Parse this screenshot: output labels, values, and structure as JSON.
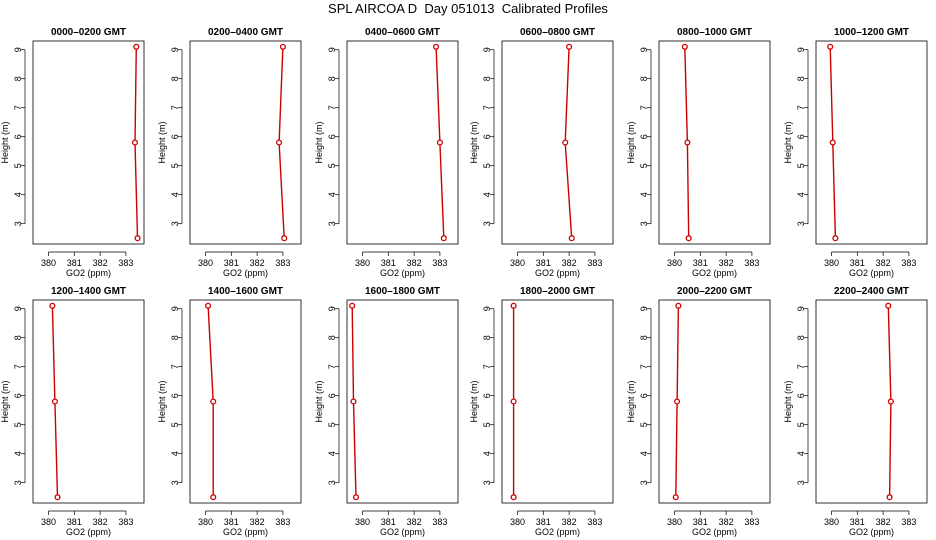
{
  "title": "SPL AIRCOA D  Day 051013  Calibrated Profiles",
  "colors": {
    "profile": "#cc0000",
    "axis": "#000000"
  },
  "chart_data": [
    {
      "type": "line",
      "title": "0000–0200 GMT",
      "xlabel": "GO2 (ppm)",
      "ylabel": "Height (m)",
      "xlim": [
        379.4,
        383.7
      ],
      "ylim": [
        2.3,
        9.3
      ],
      "xticks": [
        380,
        381,
        382,
        383
      ],
      "yticks": [
        3,
        4,
        5,
        6,
        7,
        8,
        9
      ],
      "x": [
        383.4,
        383.35,
        383.45
      ],
      "y": [
        9.1,
        5.8,
        2.5
      ]
    },
    {
      "type": "line",
      "title": "0200–0400 GMT",
      "xlabel": "GO2 (ppm)",
      "ylabel": "Height (m)",
      "xlim": [
        379.4,
        383.7
      ],
      "ylim": [
        2.3,
        9.3
      ],
      "xticks": [
        380,
        381,
        382,
        383
      ],
      "yticks": [
        3,
        4,
        5,
        6,
        7,
        8,
        9
      ],
      "x": [
        383.0,
        382.85,
        383.05
      ],
      "y": [
        9.1,
        5.8,
        2.5
      ]
    },
    {
      "type": "line",
      "title": "0400–0600 GMT",
      "xlabel": "GO2 (ppm)",
      "ylabel": "Height (m)",
      "xlim": [
        379.4,
        383.7
      ],
      "ylim": [
        2.3,
        9.3
      ],
      "xticks": [
        380,
        381,
        382,
        383
      ],
      "yticks": [
        3,
        4,
        5,
        6,
        7,
        8,
        9
      ],
      "x": [
        382.85,
        383.0,
        383.15
      ],
      "y": [
        9.1,
        5.8,
        2.5
      ]
    },
    {
      "type": "line",
      "title": "0600–0800 GMT",
      "xlabel": "GO2 (ppm)",
      "ylabel": "Height (m)",
      "xlim": [
        379.4,
        383.7
      ],
      "ylim": [
        2.3,
        9.3
      ],
      "xticks": [
        380,
        381,
        382,
        383
      ],
      "yticks": [
        3,
        4,
        5,
        6,
        7,
        8,
        9
      ],
      "x": [
        382.0,
        381.85,
        382.1
      ],
      "y": [
        9.1,
        5.8,
        2.5
      ]
    },
    {
      "type": "line",
      "title": "0800–1000 GMT",
      "xlabel": "GO2 (ppm)",
      "ylabel": "Height (m)",
      "xlim": [
        379.4,
        383.7
      ],
      "ylim": [
        2.3,
        9.3
      ],
      "xticks": [
        380,
        381,
        382,
        383
      ],
      "yticks": [
        3,
        4,
        5,
        6,
        7,
        8,
        9
      ],
      "x": [
        380.4,
        380.5,
        380.55
      ],
      "y": [
        9.1,
        5.8,
        2.5
      ]
    },
    {
      "type": "line",
      "title": "1000–1200 GMT",
      "xlabel": "GO2 (ppm)",
      "ylabel": "Height (m)",
      "xlim": [
        379.4,
        383.7
      ],
      "ylim": [
        2.3,
        9.3
      ],
      "xticks": [
        380,
        381,
        382,
        383
      ],
      "yticks": [
        3,
        4,
        5,
        6,
        7,
        8,
        9
      ],
      "x": [
        379.95,
        380.05,
        380.15
      ],
      "y": [
        9.1,
        5.8,
        2.5
      ]
    },
    {
      "type": "line",
      "title": "1200–1400 GMT",
      "xlabel": "GO2 (ppm)",
      "ylabel": "Height (m)",
      "xlim": [
        379.4,
        383.7
      ],
      "ylim": [
        2.3,
        9.3
      ],
      "xticks": [
        380,
        381,
        382,
        383
      ],
      "yticks": [
        3,
        4,
        5,
        6,
        7,
        8,
        9
      ],
      "x": [
        380.15,
        380.25,
        380.35
      ],
      "y": [
        9.1,
        5.8,
        2.5
      ]
    },
    {
      "type": "line",
      "title": "1400–1600 GMT",
      "xlabel": "GO2 (ppm)",
      "ylabel": "Height (m)",
      "xlim": [
        379.4,
        383.7
      ],
      "ylim": [
        2.3,
        9.3
      ],
      "xticks": [
        380,
        381,
        382,
        383
      ],
      "yticks": [
        3,
        4,
        5,
        6,
        7,
        8,
        9
      ],
      "x": [
        380.1,
        380.3,
        380.3
      ],
      "y": [
        9.1,
        5.8,
        2.5
      ]
    },
    {
      "type": "line",
      "title": "1600–1800 GMT",
      "xlabel": "GO2 (ppm)",
      "ylabel": "Height (m)",
      "xlim": [
        379.4,
        383.7
      ],
      "ylim": [
        2.3,
        9.3
      ],
      "xticks": [
        380,
        381,
        382,
        383
      ],
      "yticks": [
        3,
        4,
        5,
        6,
        7,
        8,
        9
      ],
      "x": [
        379.6,
        379.65,
        379.75
      ],
      "y": [
        9.1,
        5.8,
        2.5
      ]
    },
    {
      "type": "line",
      "title": "1800–2000 GMT",
      "xlabel": "GO2 (ppm)",
      "ylabel": "Height (m)",
      "xlim": [
        379.4,
        383.7
      ],
      "ylim": [
        2.3,
        9.3
      ],
      "xticks": [
        380,
        381,
        382,
        383
      ],
      "yticks": [
        3,
        4,
        5,
        6,
        7,
        8,
        9
      ],
      "x": [
        379.85,
        379.85,
        379.85
      ],
      "y": [
        9.1,
        5.8,
        2.5
      ]
    },
    {
      "type": "line",
      "title": "2000–2200 GMT",
      "xlabel": "GO2 (ppm)",
      "ylabel": "Height (m)",
      "xlim": [
        379.4,
        383.7
      ],
      "ylim": [
        2.3,
        9.3
      ],
      "xticks": [
        380,
        381,
        382,
        383
      ],
      "yticks": [
        3,
        4,
        5,
        6,
        7,
        8,
        9
      ],
      "x": [
        380.15,
        380.1,
        380.05
      ],
      "y": [
        9.1,
        5.8,
        2.5
      ]
    },
    {
      "type": "line",
      "title": "2200–2400 GMT",
      "xlabel": "GO2 (ppm)",
      "ylabel": "Height (m)",
      "xlim": [
        379.4,
        383.7
      ],
      "ylim": [
        2.3,
        9.3
      ],
      "xticks": [
        380,
        381,
        382,
        383
      ],
      "yticks": [
        3,
        4,
        5,
        6,
        7,
        8,
        9
      ],
      "x": [
        382.2,
        382.3,
        382.25
      ],
      "y": [
        9.1,
        5.8,
        2.5
      ]
    }
  ]
}
